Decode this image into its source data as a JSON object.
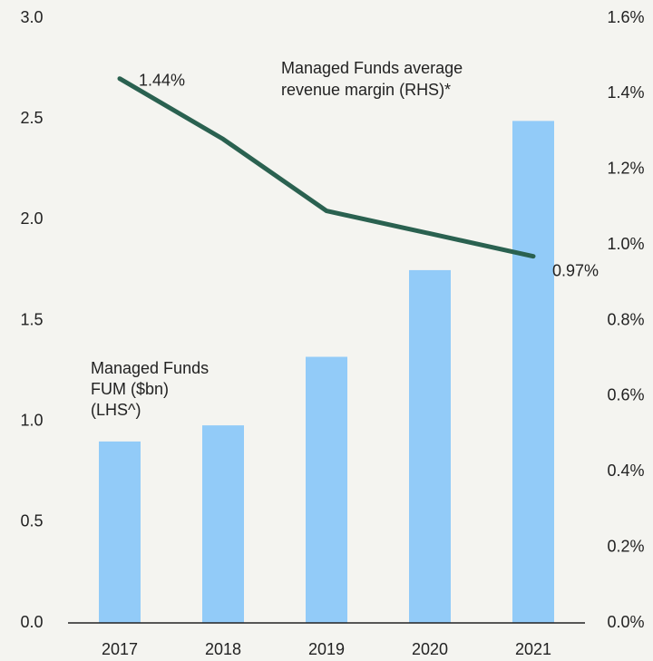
{
  "chart_data": {
    "type": "bar_line",
    "categories": [
      "2017",
      "2018",
      "2019",
      "2020",
      "2021"
    ],
    "series": [
      {
        "name": [
          "Managed Funds",
          "FUM ($bn)",
          "(LHS^)"
        ],
        "type": "bar",
        "color": "#92cbf8",
        "label_color": "#3b8fd6",
        "values": [
          0.9,
          0.98,
          1.32,
          1.75,
          2.49
        ]
      },
      {
        "name": [
          "Managed Funds  average",
          "revenue margin (RHS)*"
        ],
        "type": "line",
        "axis": "y2",
        "color": "#2a6150",
        "values": [
          1.44,
          1.28,
          1.09,
          1.03,
          0.97
        ],
        "value_labels": [
          "1.44%",
          null,
          null,
          null,
          "0.97%"
        ]
      }
    ],
    "ylim": [
      0,
      3
    ],
    "yticks": [
      {
        "value": 0,
        "label": "0.0"
      },
      0.5,
      {
        "value": 1,
        "label": "1.0"
      },
      1.5,
      {
        "value": 2,
        "label": "2.0"
      },
      2.5,
      {
        "value": 3,
        "label": "3.0"
      }
    ],
    "y2lim": [
      0,
      1.6
    ],
    "y2ticks": [
      {
        "value": 0,
        "label": "0.0%"
      },
      {
        "value": 0.2,
        "label": "0.2%"
      },
      {
        "value": 0.4,
        "label": "0.4%"
      },
      {
        "value": 0.6,
        "label": "0.6%"
      },
      {
        "value": 0.8,
        "label": "0.8%"
      },
      {
        "value": 1.0,
        "label": "1.0%"
      },
      {
        "value": 1.2,
        "label": "1.2%"
      },
      {
        "value": 1.4,
        "label": "1.4%"
      },
      {
        "value": 1.6,
        "label": "1.6%"
      }
    ],
    "grid": false
  }
}
